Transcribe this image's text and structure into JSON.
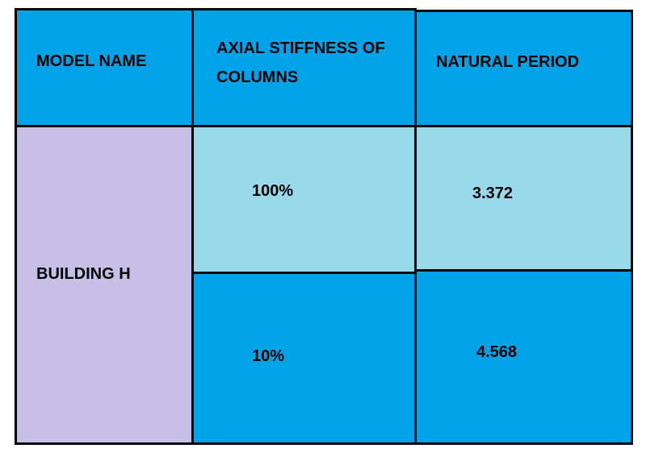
{
  "table": {
    "header": [
      "MODEL NAME",
      "AXIAL STIFFNESS OF COLUMNS",
      "NATURAL PERIOD"
    ],
    "model": "BUILDING H",
    "rows": [
      [
        "100%",
        "3.372"
      ],
      [
        "10%",
        "4.568"
      ]
    ]
  }
}
